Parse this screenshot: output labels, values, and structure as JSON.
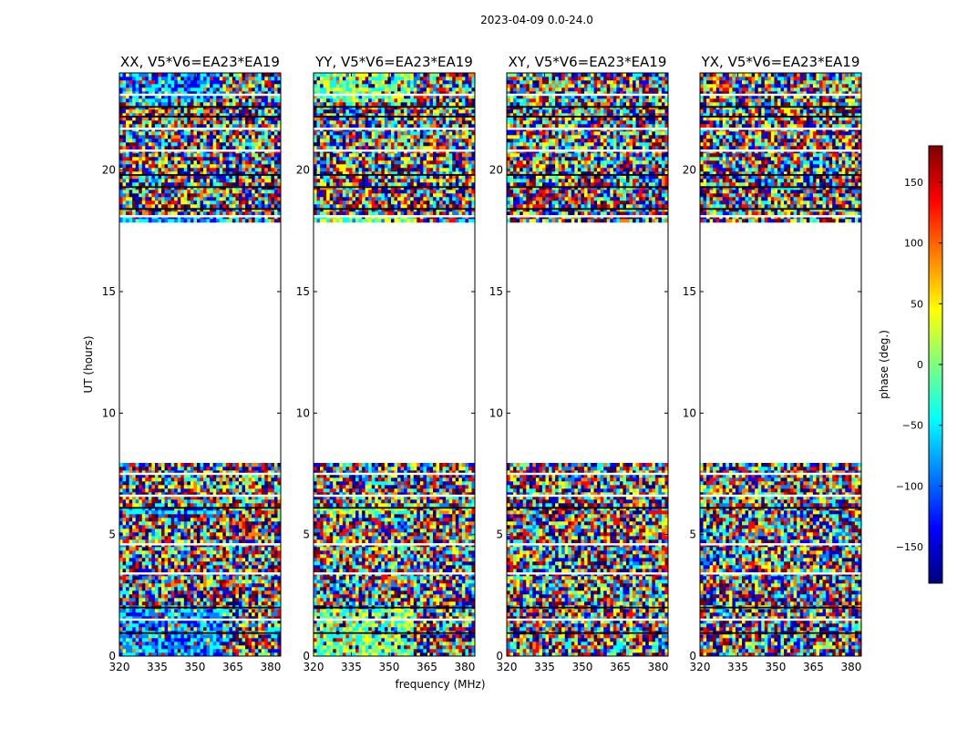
{
  "figure_title": "2023-04-09 0.0-24.0",
  "chart_data": {
    "type": "heatmap",
    "suptitle": "2023-04-09 0.0-24.0",
    "xlabel": "frequency (MHz)",
    "ylabel": "UT (hours)",
    "xlim": [
      320,
      384
    ],
    "ylim": [
      0,
      24
    ],
    "x_ticks": [
      320,
      335,
      350,
      365,
      380
    ],
    "y_ticks": [
      0,
      5,
      10,
      15,
      20
    ],
    "data_gap_hours": [
      7.9,
      17.9
    ],
    "panels": [
      {
        "title": "XX, V5*V6=EA23*EA19",
        "polarization": "XX",
        "coherent_hue": "blue-cyan"
      },
      {
        "title": "YY, V5*V6=EA23*EA19",
        "polarization": "YY",
        "coherent_hue": "cyan-yellow"
      },
      {
        "title": "XY, V5*V6=EA23*EA19",
        "polarization": "XY",
        "coherent_hue": "noise"
      },
      {
        "title": "YX, V5*V6=EA23*EA19",
        "polarization": "YX",
        "coherent_hue": "noise"
      }
    ],
    "colorbar": {
      "label": "phase (deg.)",
      "colormap": "jet",
      "range": [
        -180,
        180
      ],
      "ticks": [
        150,
        100,
        50,
        0,
        -50,
        -100,
        -150
      ],
      "tick_labels": [
        "150",
        "100",
        "50",
        "0",
        "−50",
        "−100",
        "−150"
      ]
    }
  },
  "colors": {
    "jet": [
      "#00007f",
      "#0000ff",
      "#007fff",
      "#00ffff",
      "#7fff7f",
      "#ffff00",
      "#ff7f00",
      "#ff0000",
      "#7f0000"
    ]
  }
}
